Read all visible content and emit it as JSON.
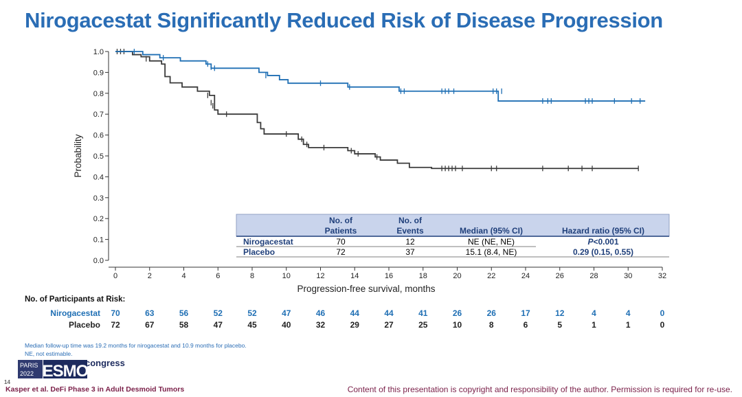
{
  "title": "Nirogacestat Significantly Reduced Risk of Disease Progression",
  "colors": {
    "nirogacestat": "#1f6fb4",
    "placebo": "#3a3a3a",
    "accent": "#2a6db5",
    "table_header_bg": "#c9d4ec",
    "footer": "#7a1f48"
  },
  "chart_data": {
    "type": "line",
    "subtype": "kaplan-meier",
    "xlabel": "Progression-free survival, months",
    "ylabel": "Probability",
    "xlim": [
      0,
      32
    ],
    "ylim": [
      0,
      1
    ],
    "xticks": [
      0,
      2,
      4,
      6,
      8,
      10,
      12,
      14,
      16,
      18,
      20,
      22,
      24,
      26,
      28,
      30,
      32
    ],
    "yticks": [
      "0.0",
      "0.1",
      "0.2",
      "0.3",
      "0.4",
      "0.5",
      "0.6",
      "0.7",
      "0.8",
      "0.9",
      "1.0"
    ],
    "series": [
      {
        "name": "Nirogacestat",
        "steps": [
          [
            0,
            1.0
          ],
          [
            1.6,
            0.985
          ],
          [
            2.6,
            0.97
          ],
          [
            3.8,
            0.955
          ],
          [
            5.3,
            0.94
          ],
          [
            5.6,
            0.92
          ],
          [
            8.4,
            0.9
          ],
          [
            8.9,
            0.885
          ],
          [
            9.6,
            0.865
          ],
          [
            10.1,
            0.848
          ],
          [
            13.6,
            0.83
          ],
          [
            16.6,
            0.81
          ],
          [
            22.4,
            0.763
          ],
          [
            31.0,
            0.763
          ]
        ],
        "censors": [
          [
            1.1,
            1.0
          ],
          [
            2.8,
            0.97
          ],
          [
            5.4,
            0.94
          ],
          [
            5.6,
            0.925
          ],
          [
            5.8,
            0.92
          ],
          [
            8.8,
            0.885
          ],
          [
            12.0,
            0.848
          ],
          [
            13.7,
            0.83
          ],
          [
            16.7,
            0.81
          ],
          [
            16.9,
            0.81
          ],
          [
            19.1,
            0.81
          ],
          [
            19.3,
            0.81
          ],
          [
            19.5,
            0.81
          ],
          [
            19.8,
            0.81
          ],
          [
            22.1,
            0.81
          ],
          [
            22.3,
            0.81
          ],
          [
            22.6,
            0.81
          ],
          [
            25.0,
            0.763
          ],
          [
            25.3,
            0.763
          ],
          [
            25.5,
            0.763
          ],
          [
            27.5,
            0.763
          ],
          [
            27.7,
            0.763
          ],
          [
            27.9,
            0.763
          ],
          [
            29.2,
            0.763
          ],
          [
            30.2,
            0.763
          ],
          [
            30.7,
            0.763
          ]
        ]
      },
      {
        "name": "Placebo",
        "steps": [
          [
            0,
            1.0
          ],
          [
            1.0,
            0.985
          ],
          [
            1.5,
            0.975
          ],
          [
            2.0,
            0.955
          ],
          [
            2.7,
            0.94
          ],
          [
            2.9,
            0.88
          ],
          [
            3.2,
            0.85
          ],
          [
            3.9,
            0.83
          ],
          [
            4.8,
            0.81
          ],
          [
            5.5,
            0.79
          ],
          [
            5.8,
            0.72
          ],
          [
            6.0,
            0.7
          ],
          [
            7.0,
            0.7
          ],
          [
            8.3,
            0.66
          ],
          [
            8.5,
            0.63
          ],
          [
            8.7,
            0.605
          ],
          [
            10.7,
            0.58
          ],
          [
            11.0,
            0.555
          ],
          [
            11.3,
            0.54
          ],
          [
            13.6,
            0.525
          ],
          [
            14.0,
            0.51
          ],
          [
            15.2,
            0.495
          ],
          [
            15.5,
            0.48
          ],
          [
            16.5,
            0.465
          ],
          [
            17.2,
            0.445
          ],
          [
            18.5,
            0.44
          ],
          [
            30.6,
            0.44
          ]
        ],
        "censors": [
          [
            0.1,
            1.0
          ],
          [
            0.3,
            1.0
          ],
          [
            0.5,
            1.0
          ],
          [
            1.8,
            0.965
          ],
          [
            5.4,
            0.79
          ],
          [
            5.6,
            0.755
          ],
          [
            5.7,
            0.74
          ],
          [
            6.5,
            0.7
          ],
          [
            10.0,
            0.605
          ],
          [
            10.9,
            0.58
          ],
          [
            11.2,
            0.555
          ],
          [
            12.2,
            0.54
          ],
          [
            13.8,
            0.525
          ],
          [
            14.2,
            0.51
          ],
          [
            15.3,
            0.495
          ],
          [
            19.1,
            0.44
          ],
          [
            19.3,
            0.44
          ],
          [
            19.5,
            0.44
          ],
          [
            19.7,
            0.44
          ],
          [
            19.9,
            0.44
          ],
          [
            20.3,
            0.44
          ],
          [
            22.0,
            0.44
          ],
          [
            22.3,
            0.44
          ],
          [
            25.0,
            0.44
          ],
          [
            26.5,
            0.44
          ],
          [
            27.3,
            0.44
          ],
          [
            27.9,
            0.44
          ],
          [
            30.6,
            0.44
          ]
        ]
      }
    ],
    "summary_table": {
      "headers": [
        "",
        "No. of Patients",
        "No. of Events",
        "Median (95% CI)",
        "Hazard ratio (95% CI)"
      ],
      "rows": [
        [
          "Nirogacestat",
          "70",
          "12",
          "NE (NE, NE)"
        ],
        [
          "Placebo",
          "72",
          "37",
          "15.1 (8.4, NE)"
        ]
      ],
      "p_value_label": "P",
      "p_value_text": "<0.001",
      "hazard_ratio": "0.29 (0.15, 0.55)"
    }
  },
  "at_risk": {
    "heading": "No. of Participants at Risk:",
    "rows": [
      {
        "label": "Nirogacestat",
        "values": [
          "70",
          "63",
          "56",
          "52",
          "52",
          "47",
          "46",
          "44",
          "44",
          "41",
          "26",
          "26",
          "17",
          "12",
          "4",
          "4",
          "0"
        ]
      },
      {
        "label": "Placebo",
        "values": [
          "72",
          "67",
          "58",
          "47",
          "45",
          "40",
          "32",
          "29",
          "27",
          "25",
          "10",
          "8",
          "6",
          "5",
          "1",
          "1",
          "0"
        ]
      }
    ]
  },
  "footnotes": [
    "Median follow-up time was 19.2 months for nirogacestat and 10.9 months for placebo.",
    "NE, not estimable."
  ],
  "logo": {
    "city": "PARIS",
    "year": "2022",
    "brand": "ESMO",
    "suffix": "congress"
  },
  "slide_number": "14",
  "reference": "Kasper et al. DeFi Phase 3 in Adult Desmoid Tumors",
  "copyright": "Content of this presentation is copyright and responsibility of the author. Permission is required for re-use."
}
